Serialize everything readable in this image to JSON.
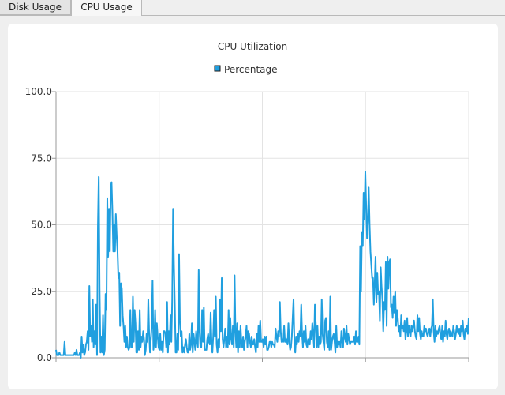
{
  "tabs": [
    {
      "label": "Disk Usage",
      "active": false
    },
    {
      "label": "CPU Usage",
      "active": true
    }
  ],
  "chart_data": {
    "type": "line",
    "title": "CPU Utilization",
    "legend": [
      "Percentage"
    ],
    "legend_position": "top-center",
    "series_color": "#209fdf",
    "ylim": [
      0,
      100
    ],
    "yticks": [
      "0.0",
      "25.0",
      "50.0",
      "75.0",
      "100.0"
    ],
    "grid": true,
    "series": [
      {
        "name": "Percentage",
        "values": [
          3,
          1,
          1,
          1,
          2,
          1,
          1,
          1,
          1,
          1,
          6,
          1,
          1,
          1,
          1,
          1,
          1,
          1,
          1,
          1,
          1,
          1,
          2,
          1,
          3,
          1,
          1,
          1,
          2,
          0,
          8,
          2,
          5,
          1,
          2,
          5,
          6,
          10,
          3,
          27,
          8,
          12,
          6,
          22,
          4,
          10,
          5,
          20,
          1,
          49,
          68,
          26,
          2,
          8,
          2,
          16,
          1,
          3,
          24,
          18,
          60,
          38,
          56,
          40,
          64,
          66,
          55,
          40,
          50,
          40,
          54,
          46,
          40,
          30,
          32,
          12,
          28,
          26,
          16,
          12,
          6,
          12,
          4,
          8,
          4,
          3,
          4,
          18,
          4,
          4,
          23,
          6,
          18,
          13,
          2,
          2,
          10,
          3,
          18,
          4,
          8,
          6,
          10,
          7,
          1,
          3,
          9,
          6,
          22,
          9,
          2,
          7,
          12,
          29,
          3,
          6,
          18,
          4,
          13,
          8,
          4,
          3,
          9,
          3,
          6,
          2,
          10,
          10,
          9,
          4,
          21,
          2,
          10,
          5,
          16,
          6,
          22,
          56,
          35,
          20,
          2,
          2,
          9,
          3,
          39,
          14,
          8,
          10,
          2,
          4,
          2,
          5,
          7,
          4,
          2,
          2,
          9,
          3,
          5,
          13,
          2,
          9,
          6,
          3,
          10,
          6,
          4,
          33,
          10,
          4,
          4,
          18,
          6,
          19,
          3,
          3,
          3,
          7,
          9,
          6,
          5,
          17,
          6,
          2,
          8,
          18,
          8,
          23,
          5,
          2,
          7,
          4,
          22,
          10,
          30,
          7,
          4,
          7,
          11,
          4,
          8,
          4,
          18,
          5,
          15,
          7,
          5,
          12,
          4,
          31,
          10,
          4,
          13,
          2,
          10,
          4,
          12,
          6,
          4,
          8,
          3,
          6,
          8,
          12,
          4,
          10,
          9,
          6,
          4,
          8,
          5,
          5,
          7,
          4,
          2,
          9,
          4,
          12,
          6,
          14,
          6,
          6,
          7,
          4,
          8,
          5,
          8,
          3,
          3,
          4,
          6,
          6,
          4,
          6,
          5,
          5,
          4,
          11,
          8,
          6,
          10,
          8,
          21,
          10,
          6,
          7,
          6,
          12,
          6,
          6,
          7,
          5,
          13,
          6,
          3,
          4,
          8,
          15,
          22,
          6,
          2,
          8,
          5,
          9,
          6,
          10,
          8,
          20,
          9,
          4,
          10,
          6,
          12,
          5,
          4,
          7,
          5,
          5,
          10,
          7,
          13,
          9,
          4,
          20,
          13,
          4,
          12,
          4,
          8,
          5,
          6,
          22,
          9,
          6,
          3,
          14,
          15,
          6,
          4,
          10,
          3,
          23,
          3,
          6,
          8,
          9,
          6,
          2,
          12,
          4,
          6,
          5,
          6,
          4,
          10,
          6,
          4,
          11,
          8,
          6,
          12,
          5,
          9,
          7,
          5,
          6,
          6,
          6,
          6,
          8,
          5,
          10,
          6,
          6,
          8,
          5,
          42,
          25,
          47,
          42,
          62,
          52,
          70,
          57,
          45,
          51,
          64,
          50,
          40,
          35,
          30,
          30,
          20,
          28,
          38,
          21,
          32,
          24,
          25,
          14,
          34,
          27,
          22,
          10,
          21,
          18,
          36,
          12,
          38,
          26,
          36,
          37,
          19,
          20,
          15,
          23,
          17,
          25,
          12,
          18,
          15,
          10,
          12,
          8,
          16,
          11,
          12,
          10,
          14,
          7,
          10,
          15,
          8,
          12,
          10,
          8,
          12,
          10,
          12,
          14,
          10,
          8,
          7,
          16,
          10,
          15,
          9,
          7,
          10,
          8,
          8,
          12,
          10,
          11,
          9,
          8,
          10,
          11,
          8,
          11,
          12,
          22,
          10,
          6,
          12,
          8,
          10,
          9,
          11,
          12,
          8,
          7,
          12,
          6,
          10,
          8,
          14,
          9,
          7,
          10,
          11,
          8,
          10,
          9,
          8,
          12,
          10,
          7,
          9,
          12,
          10,
          9,
          11,
          8,
          12,
          10,
          14,
          9,
          7,
          11,
          10,
          12,
          9,
          15
        ]
      }
    ]
  }
}
